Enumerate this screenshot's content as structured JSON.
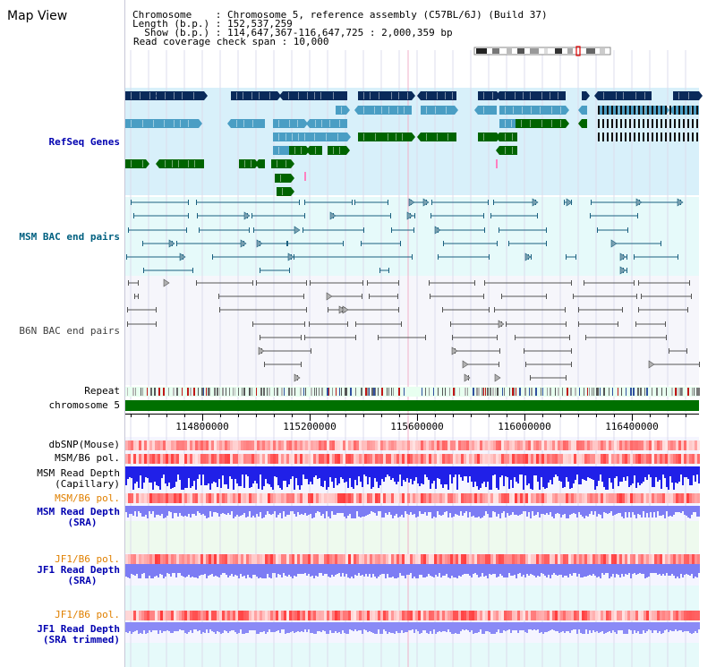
{
  "title": "Map View",
  "header": {
    "chromosome_line": "Chromosome    : Chromosome 5, reference assembly (C57BL/6J) (Build 37)",
    "length_line": "Length (b.p.) : 152,537,259",
    "show_line": "  Show (b.p.) : 114,647,367-116,647,725 : 2,000,359 bp",
    "read_line": "Read coverage check span : 10,000"
  },
  "tracks": {
    "refseq": "RefSeq Genes",
    "msm_bac": "MSM BAC end pairs",
    "b6n_bac": "B6N BAC end pairs",
    "repeat": "Repeat",
    "chromosome": "chromosome 5",
    "dbsnp": "dbSNP(Mouse)",
    "msm_b6_pol_1": "MSM/B6 pol.",
    "msm_read_depth_cap_1": "MSM Read Depth",
    "msm_read_depth_cap_2": "(Capillary)",
    "msm_b6_pol_2": "MSM/B6 pol.",
    "msm_read_depth_sra_1": "MSM Read Depth",
    "msm_read_depth_sra_2": "(SRA)",
    "jf1_b6_pol_1": "JF1/B6 pol.",
    "jf1_read_depth_1": "JF1 Read Depth",
    "jf1_read_depth_2": "(SRA)",
    "jf1_b6_pol_2": "JF1/B6 pol.",
    "jf1_read_depth_trim_1": "JF1 Read Depth",
    "jf1_read_depth_trim_2": "(SRA trimmed)"
  },
  "axis": {
    "ticks": [
      "114800000",
      "115200000",
      "115600000",
      "116000000",
      "116400000"
    ]
  },
  "colors": {
    "refseq_bg": "#d8f0fa",
    "msm_bg": "#e6fafa",
    "b6n_bg": "#f4f4fa",
    "gene_dark": "#0a2a5a",
    "gene_light": "#4a9ec4",
    "gene_green": "#006400",
    "msm_line": "#1a6080",
    "b6n_line": "#555555",
    "chrom_green": "#007000",
    "label_blue": "#0000b0",
    "label_orange": "#e08000",
    "label_teal": "#006080",
    "depth_blue": "#3030ff",
    "depth_light": "#8080ff"
  }
}
